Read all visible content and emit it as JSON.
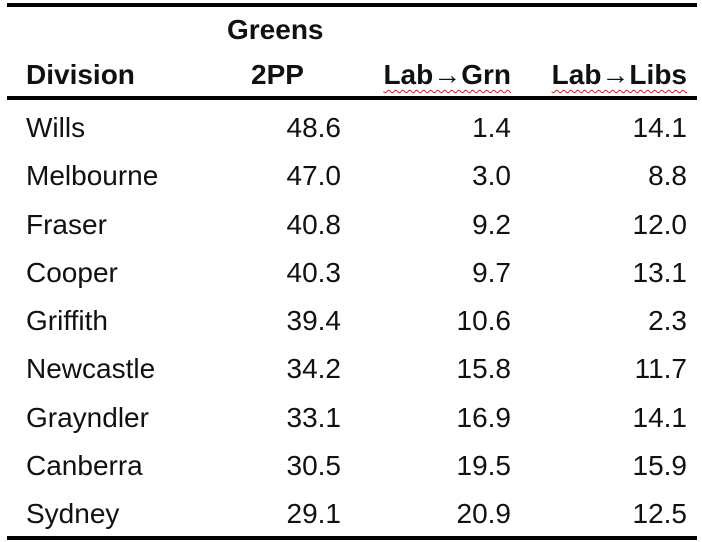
{
  "table": {
    "headers": {
      "division": "Division",
      "greens_line1": "Greens",
      "greens_line2": "2PP",
      "lab_grn": "Lab→Grn",
      "lab_libs": "Lab→Libs"
    },
    "rows": [
      {
        "division": "Wills",
        "greens_2pp": "48.6",
        "lab_grn": "1.4",
        "lab_libs": "14.1"
      },
      {
        "division": "Melbourne",
        "greens_2pp": "47.0",
        "lab_grn": "3.0",
        "lab_libs": "8.8"
      },
      {
        "division": "Fraser",
        "greens_2pp": "40.8",
        "lab_grn": "9.2",
        "lab_libs": "12.0"
      },
      {
        "division": "Cooper",
        "greens_2pp": "40.3",
        "lab_grn": "9.7",
        "lab_libs": "13.1"
      },
      {
        "division": "Griffith",
        "greens_2pp": "39.4",
        "lab_grn": "10.6",
        "lab_libs": "2.3"
      },
      {
        "division": "Newcastle",
        "greens_2pp": "34.2",
        "lab_grn": "15.8",
        "lab_libs": "11.7"
      },
      {
        "division": "Grayndler",
        "greens_2pp": "33.1",
        "lab_grn": "16.9",
        "lab_libs": "14.1"
      },
      {
        "division": "Canberra",
        "greens_2pp": "30.5",
        "lab_grn": "19.5",
        "lab_libs": "15.9"
      },
      {
        "division": "Sydney",
        "greens_2pp": "29.1",
        "lab_grn": "20.9",
        "lab_libs": "12.5"
      }
    ]
  }
}
